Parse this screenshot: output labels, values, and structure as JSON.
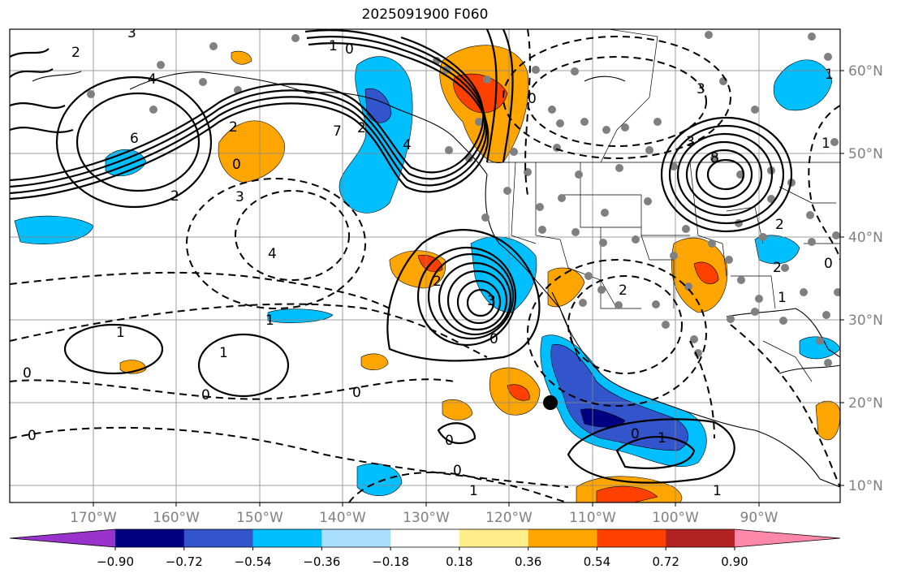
{
  "title": "2025091900 F060",
  "lon_labels": [
    "170°W",
    "160°W",
    "150°W",
    "140°W",
    "130°W",
    "120°W",
    "110°W",
    "100°W",
    "90°W"
  ],
  "lat_labels": [
    "60°N",
    "50°N",
    "40°N",
    "30°N",
    "20°N",
    "10°N"
  ],
  "colorbar": {
    "colors": [
      "#9933cc",
      "#000080",
      "#3355cc",
      "#00bfff",
      "#aadfff",
      "#ffffff",
      "#ffec8b",
      "#ffa500",
      "#ff4000",
      "#b22222",
      "#ff88aa"
    ],
    "labels": [
      "−0.90",
      "−0.72",
      "−0.54",
      "−0.36",
      "−0.18",
      "0.18",
      "0.36",
      "0.54",
      "0.72",
      "0.90"
    ]
  },
  "contour_labels": [
    "3",
    "0",
    "4",
    "2",
    "1",
    "3",
    "6",
    "2",
    "1",
    "2",
    "0",
    "7",
    "2",
    "4",
    "0",
    "3",
    "8",
    "3",
    "2",
    "4",
    "3",
    "2",
    "2",
    "1",
    "1",
    "1",
    "0",
    "0",
    "0",
    "0",
    "0",
    "0",
    "0",
    "1",
    "1",
    "1",
    "2",
    "0",
    "1",
    "1",
    "0"
  ]
}
